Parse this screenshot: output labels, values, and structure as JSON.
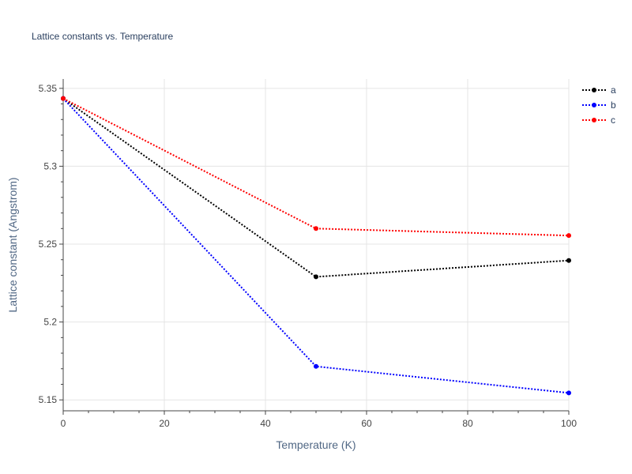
{
  "chart_data": {
    "type": "line",
    "title": "Lattice constants vs. Temperature",
    "xlabel": "Temperature (K)",
    "ylabel": "Lattice constant (Angstrom)",
    "xlim": [
      0,
      100
    ],
    "ylim": [
      5.143,
      5.356
    ],
    "x_ticks": [
      0,
      20,
      40,
      60,
      80,
      100
    ],
    "y_ticks": [
      5.15,
      5.2,
      5.25,
      5.3,
      5.35
    ],
    "x_tick_labels": [
      "0",
      "20",
      "40",
      "60",
      "80",
      "100"
    ],
    "y_tick_labels": [
      "5.15",
      "5.2",
      "5.25",
      "5.3",
      "5.35"
    ],
    "grid": true,
    "legend_position": "top-right",
    "x": [
      0,
      50,
      100
    ],
    "series": [
      {
        "name": "a",
        "color": "#000000",
        "values": [
          5.3435,
          5.229,
          5.2395
        ]
      },
      {
        "name": "b",
        "color": "#0000ff",
        "values": [
          5.3435,
          5.1715,
          5.1545
        ]
      },
      {
        "name": "c",
        "color": "#ff0000",
        "values": [
          5.3435,
          5.26,
          5.2555
        ]
      }
    ]
  }
}
